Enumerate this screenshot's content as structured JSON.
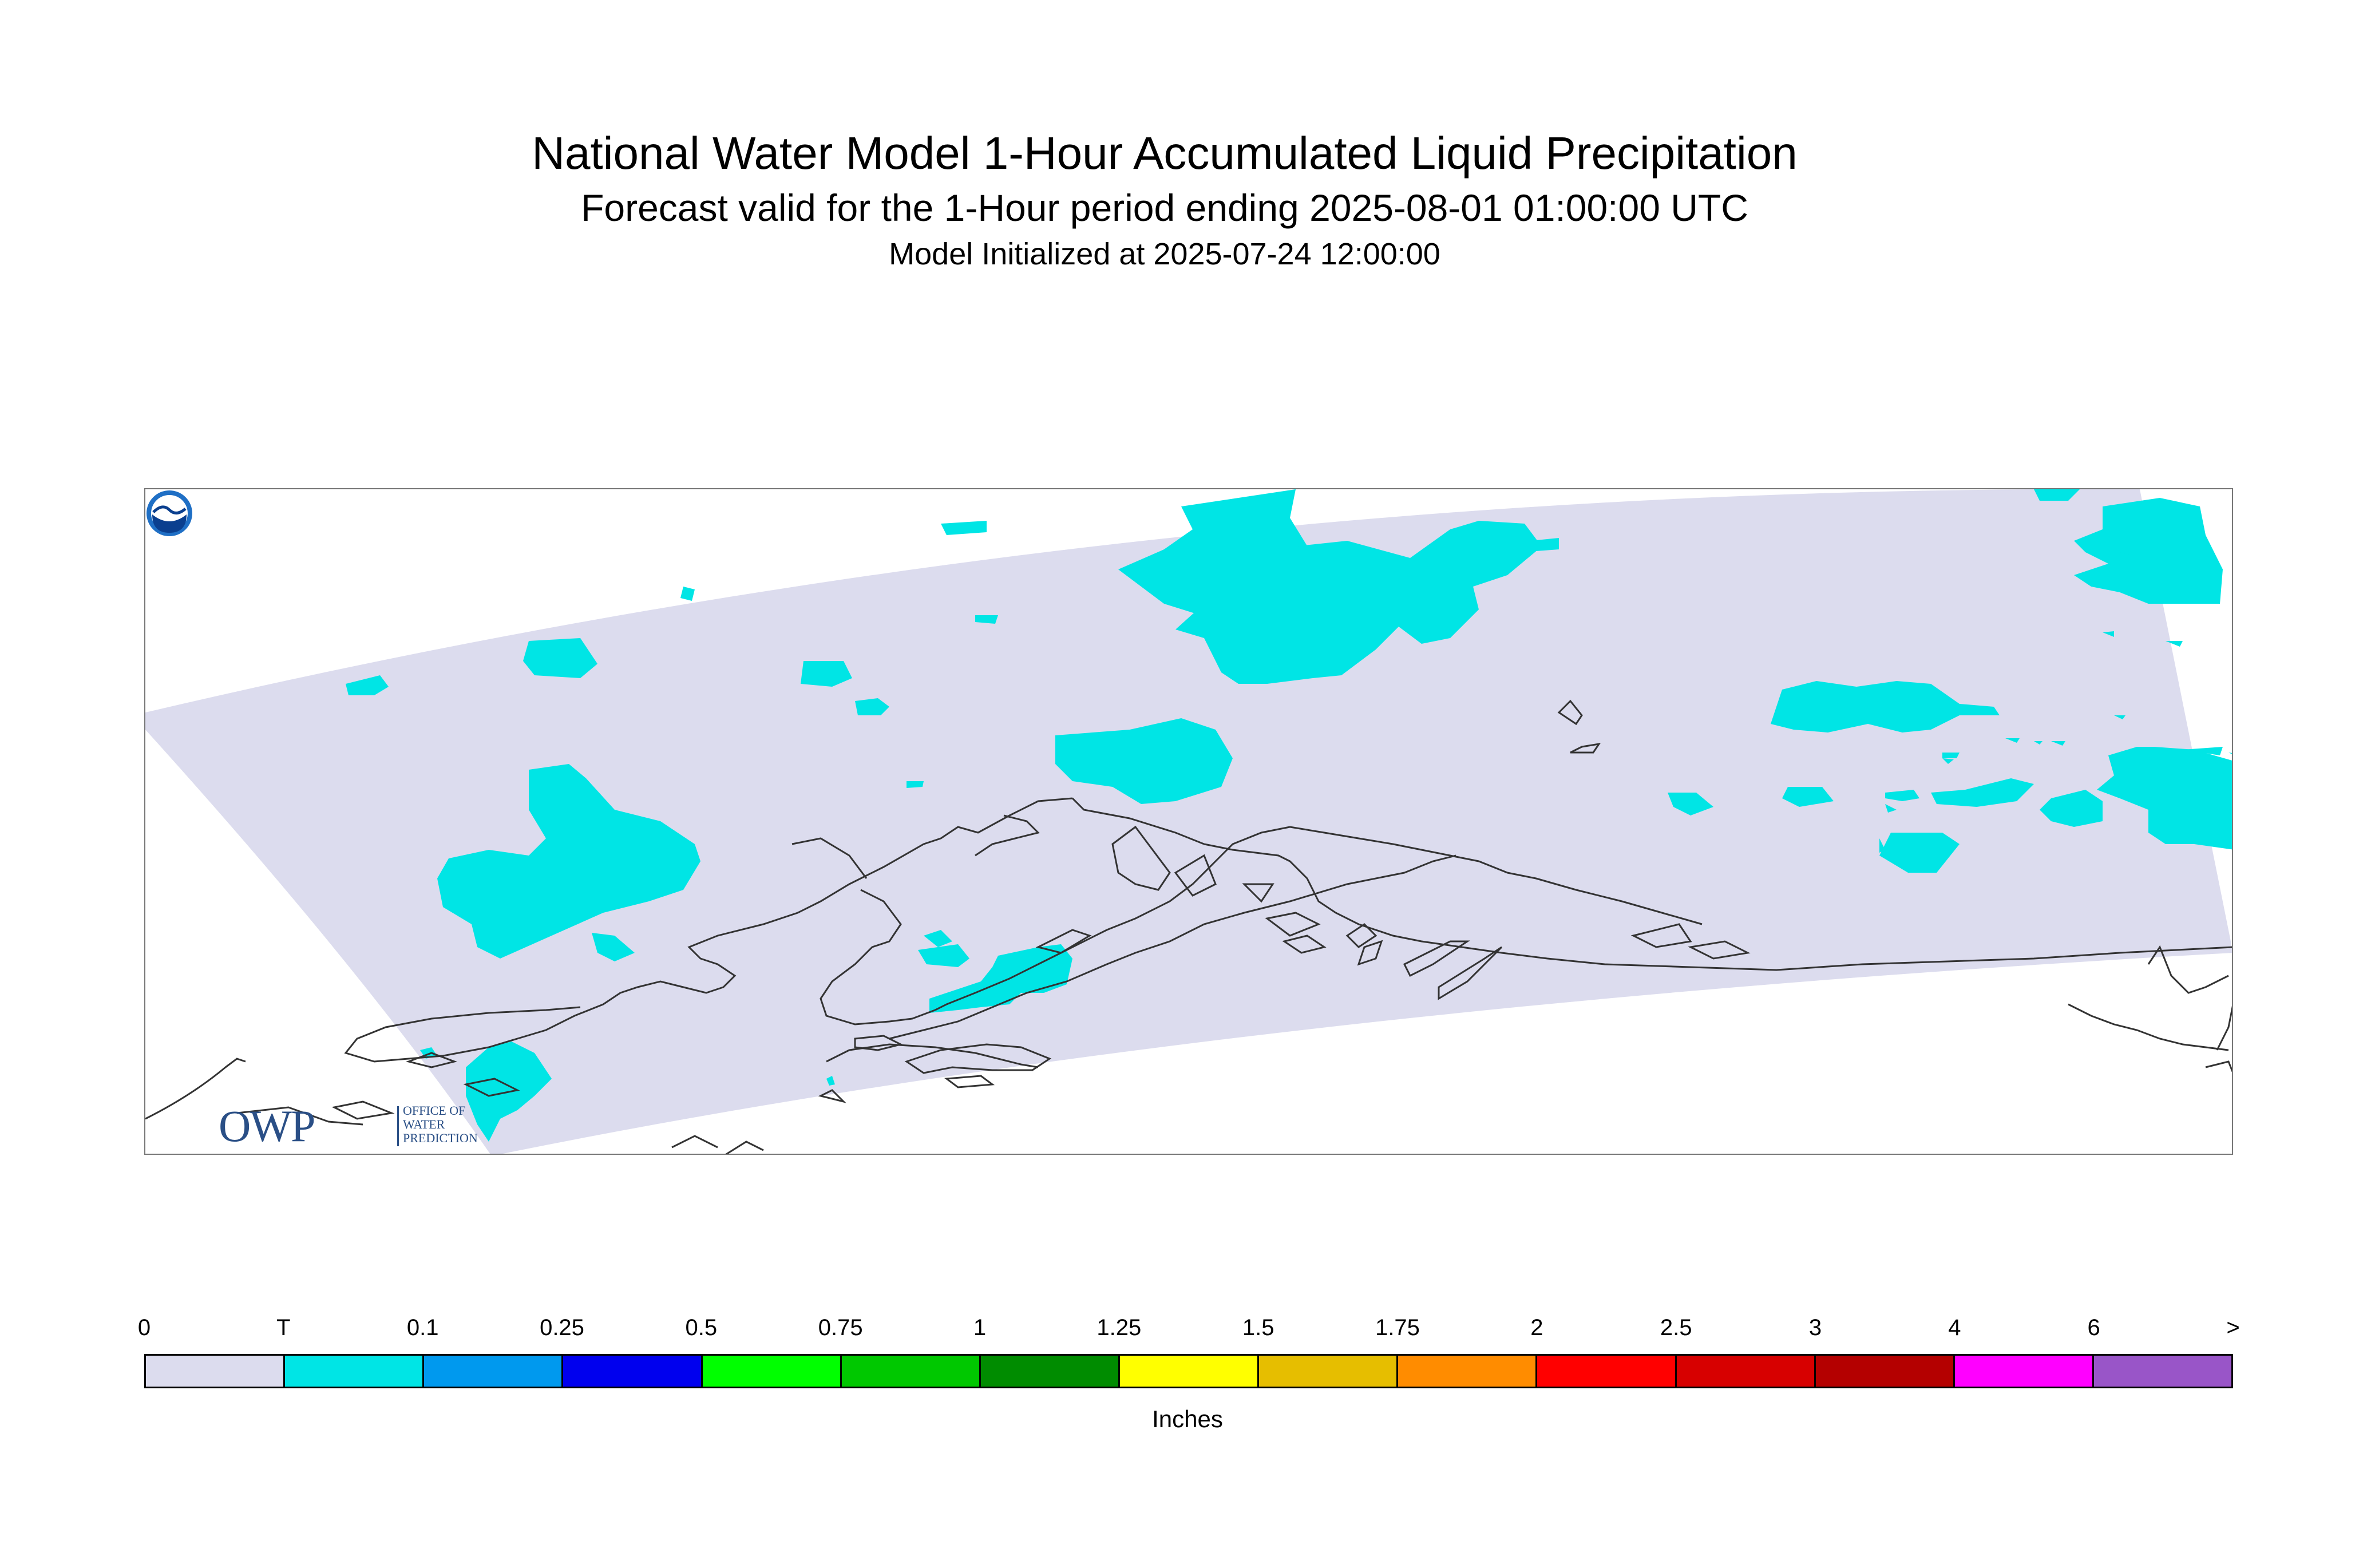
{
  "header": {
    "title": "National Water Model 1-Hour Accumulated Liquid Precipitation",
    "subtitle": "Forecast valid for the 1-Hour period ending 2025-08-01 01:00:00 UTC",
    "init": "Model Initialized at 2025-07-24 12:00:00"
  },
  "map": {
    "domain_fill": "#dcdcee",
    "precip_fill": "#00e5e5",
    "coastline_color": "#333333",
    "region": "Alaska"
  },
  "logos": {
    "owp_big": "OWP",
    "owp_small": [
      "OFFICE OF",
      "WATER",
      "PREDICTION"
    ],
    "noaa": "NOAA"
  },
  "legend": {
    "units": "Inches",
    "labels": [
      "0",
      "T",
      "0.1",
      "0.25",
      "0.5",
      "0.75",
      "1",
      "1.25",
      "1.5",
      "1.75",
      "2",
      "2.5",
      "3",
      "4",
      "6",
      ">"
    ],
    "colors": [
      "#dcdcee",
      "#00e5e5",
      "#0099ee",
      "#0000ee",
      "#00ff00",
      "#00c800",
      "#008c00",
      "#ffff00",
      "#e6be00",
      "#ff8c00",
      "#ff0000",
      "#d70000",
      "#b40000",
      "#ff00ff",
      "#9955c8"
    ]
  }
}
